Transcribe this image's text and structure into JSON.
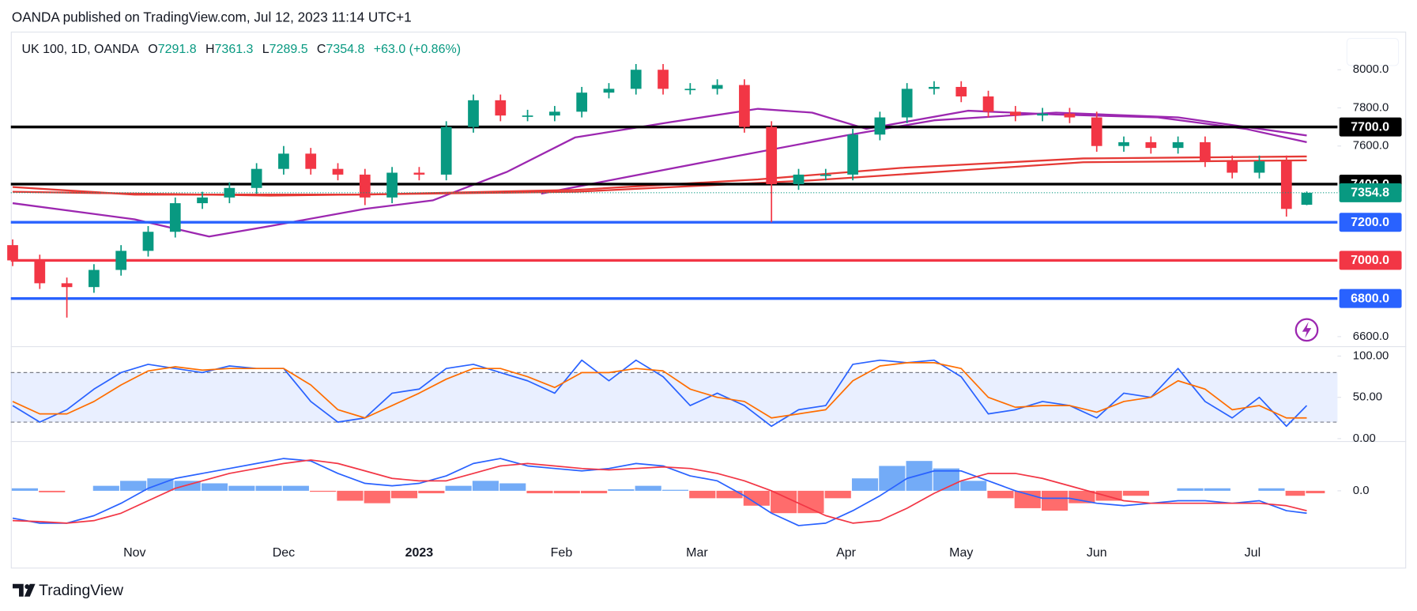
{
  "header": {
    "published": "OANDA published on TradingView.com, Jul 12, 2023 11:14 UTC+1"
  },
  "footer": {
    "brand": "TradingView"
  },
  "chart_data": [
    {
      "type": "candlestick",
      "symbol": "UK 100, 1D, OANDA",
      "ohlc_labels": [
        "O",
        "H",
        "L",
        "C"
      ],
      "change": "+63.0 (+0.86%)",
      "up_color": "#089981",
      "down_color": "#f23645",
      "x": [
        0,
        4,
        8,
        12,
        16,
        20,
        24,
        28,
        32,
        36,
        40,
        44,
        48,
        52,
        56,
        60,
        64,
        68,
        72,
        76,
        80,
        84,
        88,
        92,
        96,
        100,
        104,
        108,
        112,
        116,
        120,
        124,
        128,
        132,
        136,
        140,
        144,
        148,
        152,
        156,
        160,
        164,
        168,
        172,
        176,
        180,
        184,
        188,
        191
      ],
      "open": [
        7080,
        7000,
        6880,
        6860,
        6950,
        7050,
        7150,
        7300,
        7330,
        7380,
        7480,
        7560,
        7480,
        7450,
        7330,
        7460,
        7450,
        7700,
        7840,
        7760,
        7760,
        7780,
        7880,
        7900,
        8000,
        7900,
        7900,
        7920,
        7700,
        7400,
        7450,
        7450,
        7660,
        7750,
        7900,
        7910,
        7860,
        7780,
        7760,
        7770,
        7750,
        7600,
        7620,
        7590,
        7620,
        7520,
        7460,
        7520,
        7291.8
      ],
      "high": [
        7110,
        7030,
        6910,
        6980,
        7080,
        7180,
        7330,
        7360,
        7410,
        7510,
        7600,
        7590,
        7510,
        7480,
        7490,
        7490,
        7730,
        7870,
        7870,
        7790,
        7810,
        7910,
        7930,
        8030,
        8030,
        7930,
        7950,
        7950,
        7730,
        7480,
        7480,
        7690,
        7780,
        7930,
        7940,
        7940,
        7890,
        7810,
        7800,
        7800,
        7780,
        7650,
        7650,
        7650,
        7650,
        7550,
        7550,
        7550,
        7361.3
      ],
      "low": [
        6970,
        6850,
        6700,
        6830,
        6920,
        7020,
        7120,
        7270,
        7300,
        7350,
        7450,
        7450,
        7420,
        7290,
        7300,
        7420,
        7420,
        7670,
        7730,
        7730,
        7730,
        7750,
        7850,
        7870,
        7870,
        7870,
        7870,
        7670,
        7200,
        7370,
        7420,
        7420,
        7630,
        7720,
        7870,
        7830,
        7750,
        7730,
        7730,
        7720,
        7570,
        7570,
        7560,
        7560,
        7490,
        7430,
        7430,
        7230,
        7289.5
      ],
      "close": [
        7000,
        6880,
        6860,
        6950,
        7050,
        7150,
        7300,
        7330,
        7380,
        7480,
        7560,
        7480,
        7450,
        7330,
        7460,
        7450,
        7700,
        7840,
        7760,
        7760,
        7780,
        7880,
        7900,
        8000,
        7900,
        7900,
        7920,
        7700,
        7400,
        7450,
        7450,
        7660,
        7750,
        7900,
        7910,
        7860,
        7780,
        7760,
        7770,
        7750,
        7600,
        7620,
        7590,
        7620,
        7520,
        7460,
        7520,
        7270,
        7354.8
      ],
      "moving_averages": [
        {
          "color": "#9c27b0",
          "x": [
            0,
            18,
            29,
            38,
            52,
            62,
            73,
            83,
            97,
            110,
            118,
            126,
            141,
            154,
            169,
            182,
            191
          ],
          "values": [
            7300,
            7215,
            7125,
            7180,
            7270,
            7315,
            7465,
            7645,
            7725,
            7795,
            7775,
            7690,
            7785,
            7765,
            7750,
            7690,
            7620
          ]
        },
        {
          "color": "#9c27b0",
          "x": [
            78,
            91,
            105,
            123,
            136,
            154,
            172,
            191
          ],
          "values": [
            7350,
            7440,
            7535,
            7655,
            7735,
            7775,
            7750,
            7655
          ]
        },
        {
          "color": "#e53935",
          "x": [
            0,
            18,
            52,
            83,
            110,
            131,
            158,
            191
          ],
          "values": [
            7385,
            7345,
            7345,
            7370,
            7425,
            7485,
            7535,
            7545
          ]
        },
        {
          "color": "#e53935",
          "x": [
            0,
            38,
            83,
            118,
            158,
            191
          ],
          "values": [
            7360,
            7340,
            7360,
            7420,
            7515,
            7525
          ]
        }
      ],
      "levels": [
        {
          "value": 7700,
          "label": "7700.0",
          "color": "#000000"
        },
        {
          "value": 7400,
          "label": "7400.0",
          "color": "#000000"
        },
        {
          "value": 7200,
          "label": "7200.0",
          "color": "#2962ff"
        },
        {
          "value": 7000,
          "label": "7000.0",
          "color": "#f23645"
        },
        {
          "value": 6800,
          "label": "6800.0",
          "color": "#2962ff"
        }
      ],
      "xlim": [
        0,
        195
      ],
      "xticks": [
        {
          "value": 18,
          "label": "Nov"
        },
        {
          "value": 40,
          "label": "Dec"
        },
        {
          "value": 60,
          "label": "2023"
        },
        {
          "value": 81,
          "label": "Feb"
        },
        {
          "value": 101,
          "label": "Mar"
        },
        {
          "value": 123,
          "label": "Apr"
        },
        {
          "value": 140,
          "label": "May"
        },
        {
          "value": 160,
          "label": "Jun"
        },
        {
          "value": 183,
          "label": "Jul"
        }
      ],
      "ylim": [
        6550,
        8200
      ],
      "yticks": [
        {
          "value": 8000,
          "label": "8000.0"
        },
        {
          "value": 7800,
          "label": "7800.0"
        },
        {
          "value": 7600,
          "label": "7600.0"
        },
        {
          "value": 6600,
          "label": "6600.0"
        }
      ]
    },
    {
      "type": "line",
      "series": [
        {
          "color": "#2962ff",
          "values": [
            40,
            20,
            35,
            60,
            80,
            90,
            85,
            80,
            88,
            85,
            85,
            45,
            20,
            25,
            55,
            60,
            85,
            90,
            80,
            70,
            55,
            95,
            70,
            95,
            75,
            40,
            55,
            40,
            15,
            35,
            40,
            90,
            95,
            92,
            95,
            75,
            30,
            35,
            45,
            40,
            25,
            55,
            50,
            85,
            45,
            25,
            50,
            15,
            40
          ]
        },
        {
          "color": "#ff6d00",
          "values": [
            45,
            30,
            30,
            45,
            65,
            82,
            87,
            83,
            85,
            85,
            85,
            65,
            35,
            25,
            40,
            55,
            72,
            85,
            85,
            75,
            62,
            80,
            80,
            85,
            82,
            60,
            50,
            45,
            25,
            30,
            35,
            70,
            88,
            92,
            92,
            85,
            50,
            38,
            40,
            40,
            32,
            45,
            50,
            70,
            60,
            35,
            40,
            25,
            25
          ]
        }
      ],
      "levels": [
        20,
        80
      ],
      "band_color": "#2962ff",
      "ylim": [
        -3,
        112
      ],
      "yticks": [
        {
          "value": 100,
          "label": "100.00"
        },
        {
          "value": 50,
          "label": "50.00"
        },
        {
          "value": 0,
          "label": "0.00"
        }
      ]
    },
    {
      "type": "macd",
      "histogram": {
        "pos_color": "#5b9cf6",
        "neg_color": "#ff5252",
        "values": [
          5,
          -3,
          0,
          10,
          20,
          25,
          20,
          15,
          10,
          10,
          10,
          -2,
          -20,
          -25,
          -15,
          -5,
          10,
          20,
          15,
          -5,
          -5,
          -5,
          3,
          10,
          2,
          -15,
          -15,
          -30,
          -45,
          -45,
          -15,
          25,
          50,
          60,
          45,
          20,
          -15,
          -35,
          -40,
          -25,
          -20,
          -10,
          0,
          5,
          5,
          0,
          5,
          -10,
          -5
        ]
      },
      "series": [
        {
          "color": "#2962ff",
          "values": [
            -55,
            -65,
            -65,
            -50,
            -25,
            5,
            25,
            35,
            45,
            55,
            65,
            60,
            35,
            15,
            10,
            15,
            30,
            55,
            65,
            50,
            45,
            40,
            45,
            55,
            50,
            30,
            20,
            -10,
            -45,
            -70,
            -65,
            -40,
            -10,
            25,
            40,
            40,
            20,
            0,
            -15,
            -15,
            -25,
            -30,
            -25,
            -20,
            -20,
            -25,
            -20,
            -40,
            -45
          ]
        },
        {
          "color": "#f23645",
          "values": [
            -60,
            -62,
            -65,
            -60,
            -45,
            -20,
            5,
            20,
            35,
            45,
            55,
            62,
            55,
            40,
            25,
            20,
            20,
            35,
            50,
            55,
            50,
            45,
            42,
            45,
            48,
            45,
            35,
            20,
            0,
            -25,
            -50,
            -65,
            -60,
            -35,
            -5,
            20,
            35,
            35,
            25,
            10,
            -5,
            -20,
            -25,
            -25,
            -25,
            -25,
            -25,
            -30,
            -40
          ]
        }
      ],
      "ylim": [
        -100,
        100
      ],
      "yticks": [
        {
          "value": 0,
          "label": "0.0"
        }
      ]
    }
  ]
}
